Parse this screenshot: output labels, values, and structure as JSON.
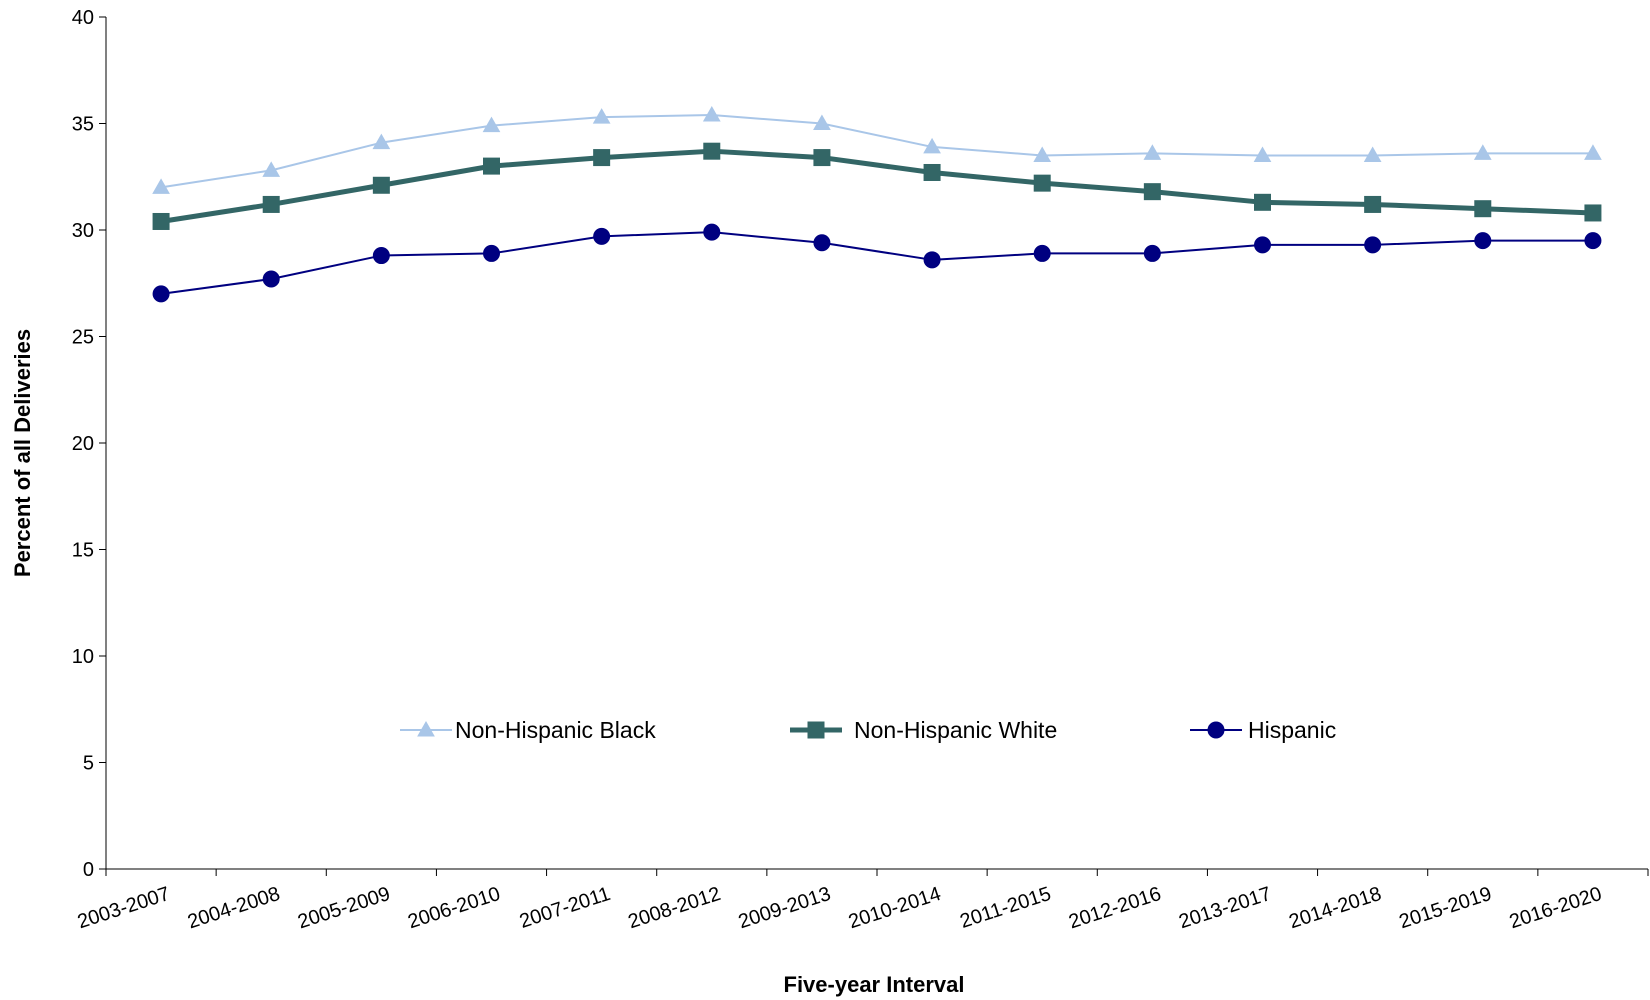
{
  "chart_data": {
    "type": "line",
    "xlabel": "Five-year Interval",
    "ylabel": "Percent of all Deliveries",
    "ylim": [
      0,
      40
    ],
    "yticks": [
      0,
      5,
      10,
      15,
      20,
      25,
      30,
      35,
      40
    ],
    "grid": false,
    "legend_position": "center",
    "categories": [
      "2003-2007",
      "2004-2008",
      "2005-2009",
      "2006-2010",
      "2007-2011",
      "2008-2012",
      "2009-2013",
      "2010-2014",
      "2011-2015",
      "2012-2016",
      "2013-2017",
      "2014-2018",
      "2015-2019",
      "2016-2020"
    ],
    "series": [
      {
        "name": "Non-Hispanic Black",
        "color": "#a9c6e8",
        "marker": "triangle",
        "values": [
          32.0,
          32.8,
          34.1,
          34.9,
          35.3,
          35.4,
          35.0,
          33.9,
          33.5,
          33.6,
          33.5,
          33.5,
          33.6,
          33.6
        ]
      },
      {
        "name": "Non-Hispanic White",
        "color": "#336666",
        "marker": "square",
        "values": [
          30.4,
          31.2,
          32.1,
          33.0,
          33.4,
          33.7,
          33.4,
          32.7,
          32.2,
          31.8,
          31.3,
          31.2,
          31.0,
          30.8
        ]
      },
      {
        "name": "Hispanic",
        "color": "#000080",
        "marker": "circle",
        "values": [
          27.0,
          27.7,
          28.8,
          28.9,
          29.7,
          29.9,
          29.4,
          28.6,
          28.9,
          28.9,
          29.3,
          29.3,
          29.5,
          29.5
        ]
      }
    ]
  }
}
